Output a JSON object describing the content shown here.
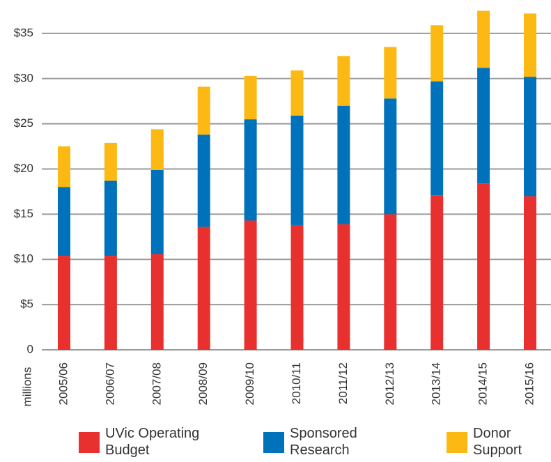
{
  "chart_data": {
    "type": "stacked_bar",
    "y_label": "millions",
    "categories": [
      "2005/06",
      "2006/07",
      "2007/08",
      "2008/09",
      "2009/10",
      "2010/11",
      "2011/12",
      "2012/13",
      "2013/14",
      "2014/15",
      "2015/16"
    ],
    "series": [
      {
        "name": "UVic Operating Budget",
        "color": "#e8312f",
        "values": [
          10.4,
          10.4,
          10.6,
          13.6,
          14.3,
          13.8,
          13.9,
          15.0,
          17.1,
          18.4,
          17.0
        ]
      },
      {
        "name": "Sponsored Research",
        "color": "#0072bc",
        "values": [
          7.6,
          8.3,
          9.3,
          10.2,
          11.2,
          12.1,
          13.1,
          12.8,
          12.6,
          12.8,
          13.2
        ]
      },
      {
        "name": "Donor Support",
        "color": "#fdb913",
        "values": [
          4.5,
          4.2,
          4.5,
          5.3,
          4.8,
          5.0,
          5.5,
          5.7,
          6.2,
          6.3,
          7.0
        ]
      }
    ],
    "ylim": [
      0,
      38
    ],
    "yticks": [
      0,
      {
        "value": 5,
        "label": "$5"
      },
      {
        "value": 10,
        "label": "$10"
      },
      {
        "value": 15,
        "label": "$15"
      },
      {
        "value": 20,
        "label": "$20"
      },
      {
        "value": 25,
        "label": "$25"
      },
      {
        "value": 30,
        "label": "$30"
      },
      {
        "value": 35,
        "label": "$35"
      }
    ],
    "grid": true,
    "legend": "bottom"
  }
}
